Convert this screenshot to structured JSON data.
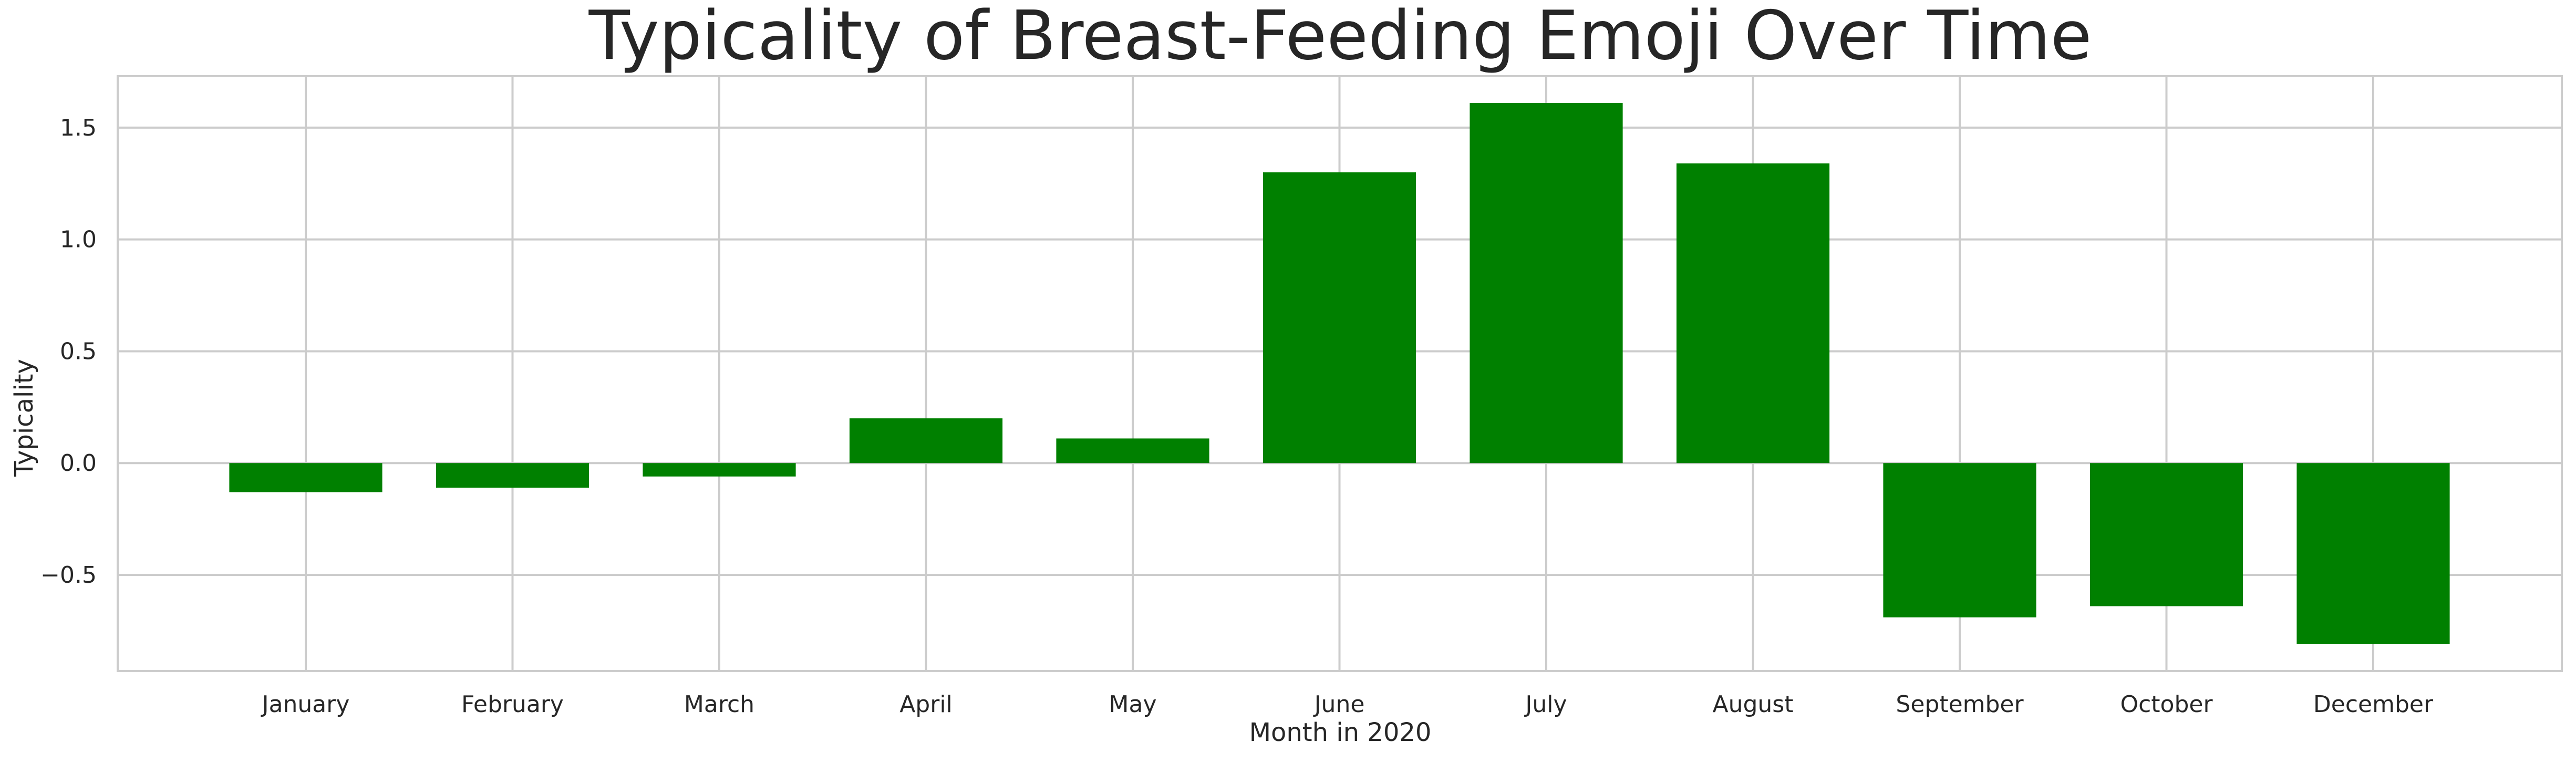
{
  "chart_data": {
    "type": "bar",
    "title": "Typicality of Breast-Feeding Emoji Over Time",
    "xlabel": "Month in 2020",
    "ylabel": "Typicality",
    "categories": [
      "January",
      "February",
      "March",
      "April",
      "May",
      "June",
      "July",
      "August",
      "September",
      "October",
      "December"
    ],
    "values": [
      -0.13,
      -0.11,
      -0.06,
      0.2,
      0.11,
      1.3,
      1.61,
      1.34,
      -0.69,
      -0.64,
      -0.81
    ],
    "ylim": [
      -0.93,
      1.73
    ],
    "yticks": [
      -0.5,
      0.0,
      0.5,
      1.0,
      1.5
    ],
    "ytick_labels": [
      "−0.5",
      "0.0",
      "0.5",
      "1.0",
      "1.5"
    ],
    "grid": true,
    "bar_color": "#008000",
    "grid_color": "#cccccc",
    "spine_color": "#cccccc"
  }
}
